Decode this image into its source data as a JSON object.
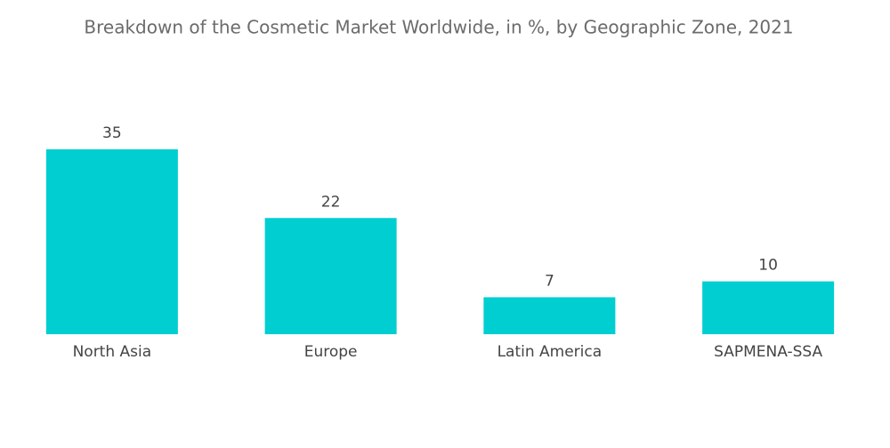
{
  "chart_data": {
    "type": "bar",
    "title": "Breakdown of the Cosmetic Market Worldwide, in %, by Geographic Zone, 2021",
    "categories": [
      "North Asia",
      "Europe",
      "Latin America",
      "SAPMENA-SSA"
    ],
    "values": [
      35,
      22,
      7,
      10
    ],
    "color": "#00ced1"
  }
}
